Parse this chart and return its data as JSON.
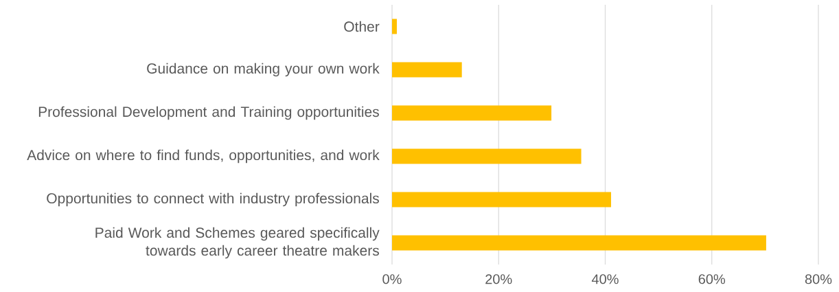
{
  "chart_data": {
    "type": "bar",
    "orientation": "horizontal",
    "categories": [
      "Other",
      "Guidance on making your own work",
      "Professional Development and Training opportunities",
      "Advice on where to find funds, opportunities, and work",
      "Opportunities to connect with industry professionals",
      "Paid Work and Schemes geared specifically towards early career theatre makers"
    ],
    "values": [
      0.9,
      13.1,
      29.9,
      35.5,
      41.1,
      70.2
    ],
    "color": "#ffc000",
    "xlim": [
      0,
      80
    ],
    "xticks": [
      {
        "value": 0,
        "label": "0%"
      },
      {
        "value": 20,
        "label": "20%"
      },
      {
        "value": 40,
        "label": "40%"
      },
      {
        "value": 60,
        "label": "60%"
      },
      {
        "value": 80,
        "label": "80%"
      }
    ],
    "grid": "x"
  }
}
